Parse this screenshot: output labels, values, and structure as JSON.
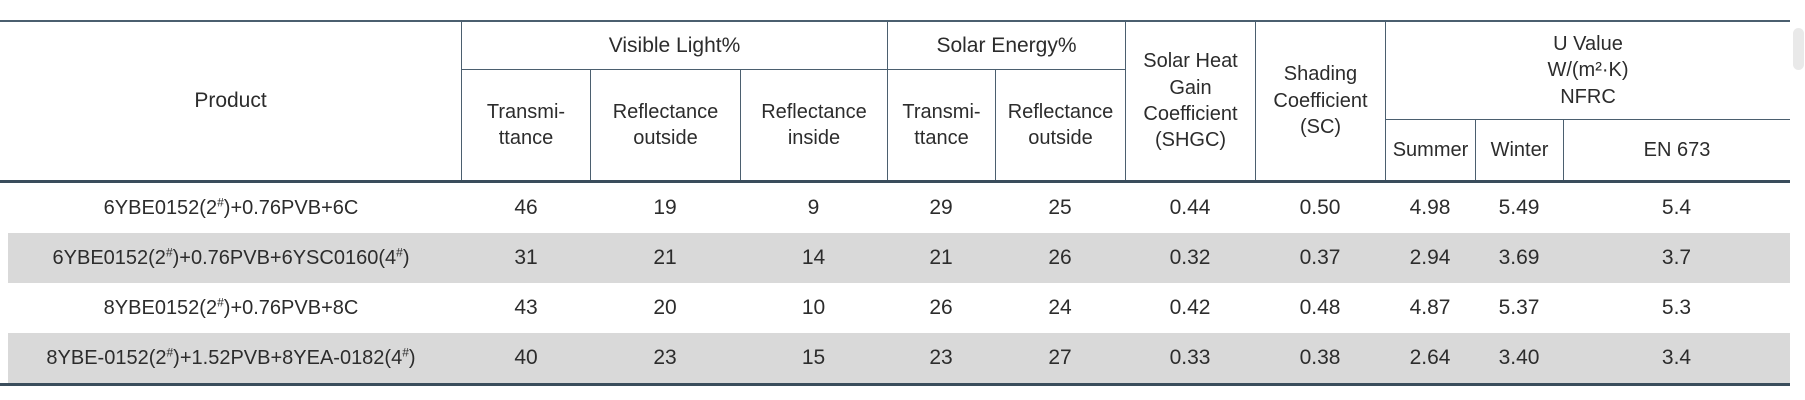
{
  "colors": {
    "border": "#4b5f6f",
    "border_heavy": "#3a4d5c",
    "text": "#2c2c2c",
    "shaded_row": "#d9d9d9",
    "scrollbar_thumb": "#e9e9e9"
  },
  "table": {
    "header": {
      "product": "Product",
      "visible_light": "Visible Light%",
      "solar_energy": "Solar Energy%",
      "shgc": "Solar Heat\nGain\nCoefficient\n(SHGC)",
      "shading_coefficient": "Shading\nCoefficient\n(SC)",
      "u_value": "U Value\nW/(m²·K)\nNFRC",
      "vl_transmittance": "Transmi-\nttance",
      "vl_reflectance_outside": "Reflectance\noutside",
      "vl_reflectance_inside": "Reflectance\ninside",
      "se_transmittance": "Transmi-\nttance",
      "se_reflectance_outside": "Reflectance\noutside",
      "summer": "Summer",
      "winter": "Winter",
      "en673": "EN 673"
    },
    "rows": [
      {
        "product": "6YBE0152(2#)+0.76PVB+6C",
        "values": [
          "46",
          "19",
          "9",
          "29",
          "25",
          "0.44",
          "0.50",
          "4.98",
          "5.49",
          "5.4"
        ]
      },
      {
        "product": "6YBE0152(2#)+0.76PVB+6YSC0160(4#)",
        "values": [
          "31",
          "21",
          "14",
          "21",
          "26",
          "0.32",
          "0.37",
          "2.94",
          "3.69",
          "3.7"
        ]
      },
      {
        "product": "8YBE0152(2#)+0.76PVB+8C",
        "values": [
          "43",
          "20",
          "10",
          "26",
          "24",
          "0.42",
          "0.48",
          "4.87",
          "5.37",
          "5.3"
        ]
      },
      {
        "product": "8YBE-0152(2#)+1.52PVB+8YEA-0182(4#)",
        "values": [
          "40",
          "23",
          "15",
          "23",
          "27",
          "0.33",
          "0.38",
          "2.64",
          "3.40",
          "3.4"
        ]
      }
    ]
  }
}
